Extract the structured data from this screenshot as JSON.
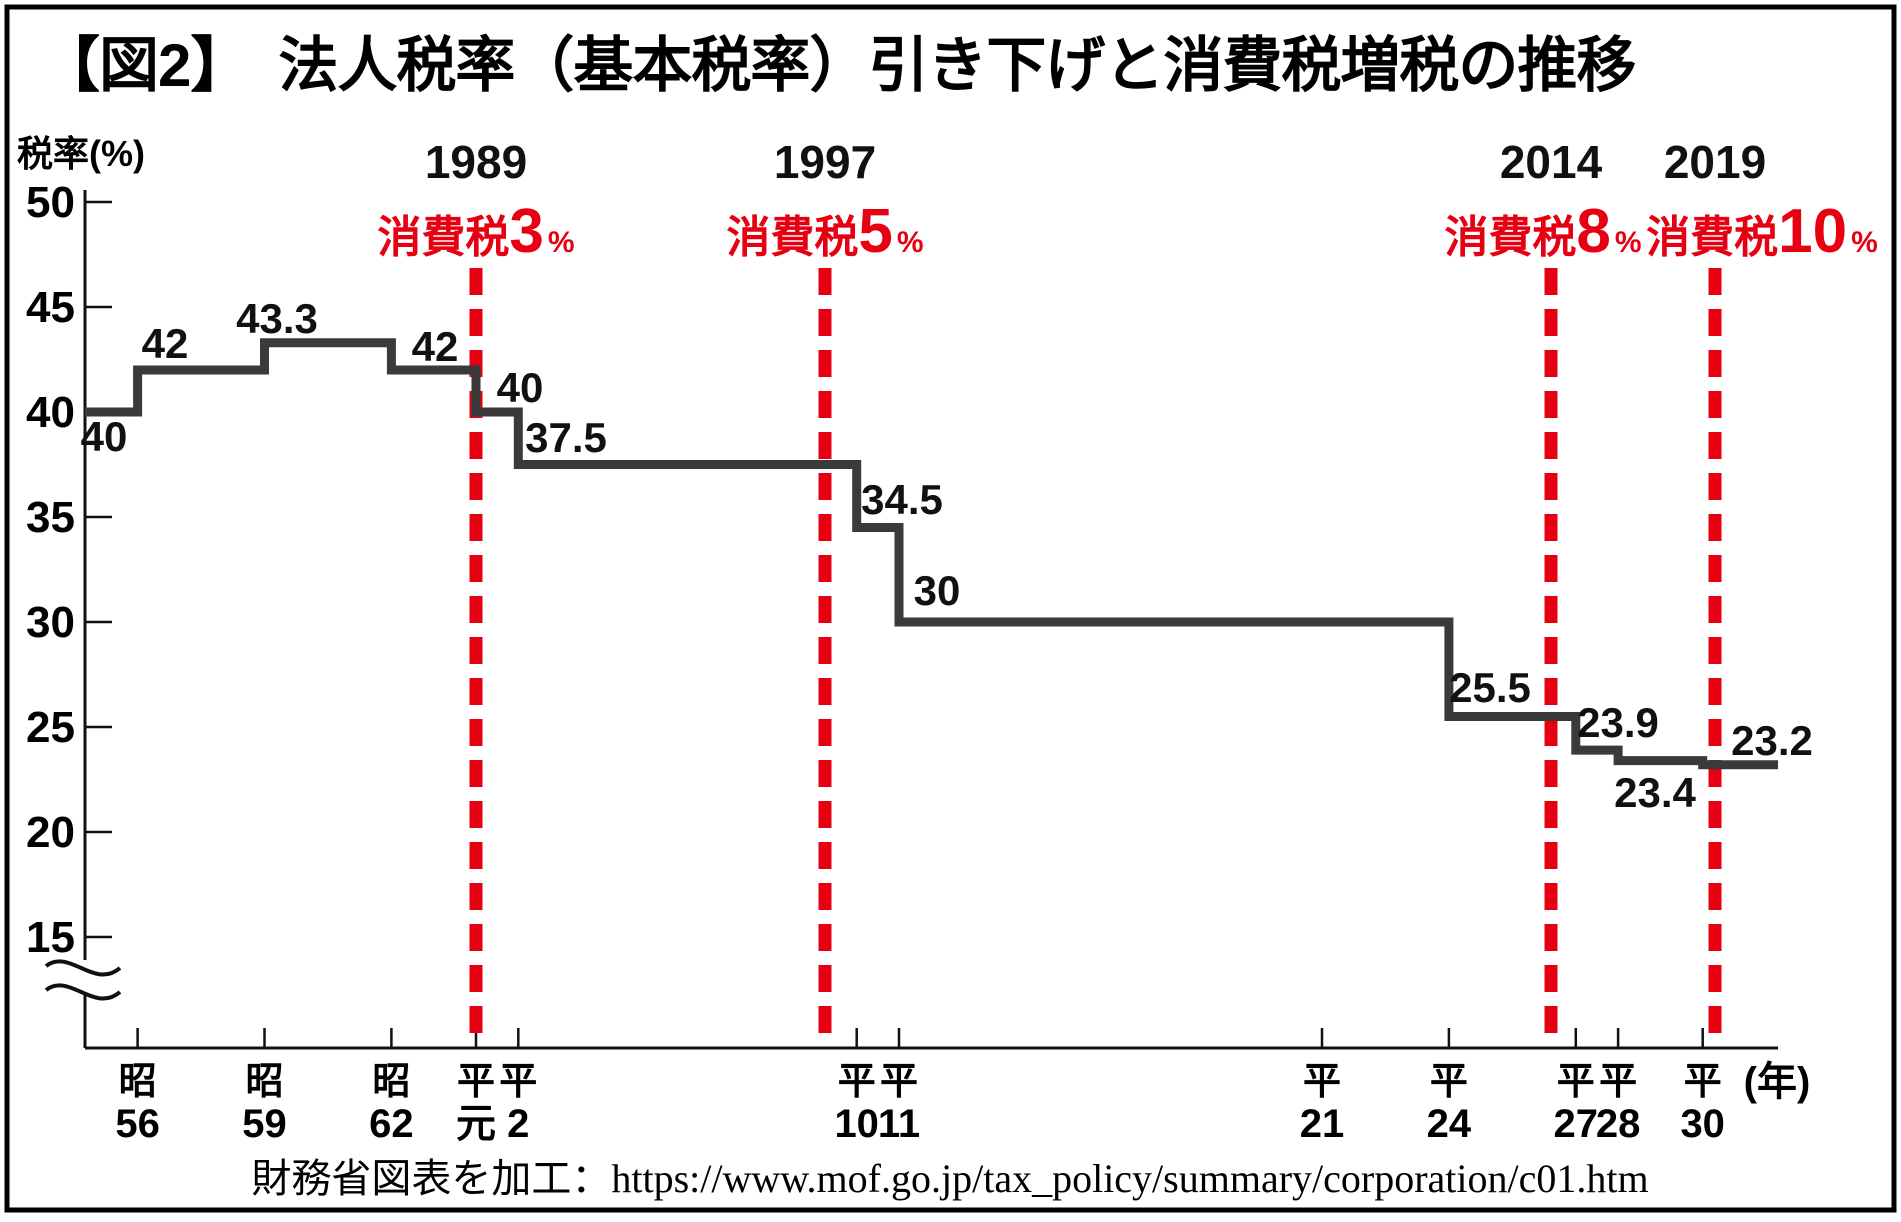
{
  "title": "【図2】　法人税率（基本税率）引き下げと消費税増税の推移",
  "y_axis": {
    "label": "税率(%)",
    "ticks": [
      50,
      45,
      40,
      35,
      30,
      25,
      20,
      15
    ],
    "axis_break": true
  },
  "x_axis": {
    "unit_label": "(年)",
    "ticks": [
      {
        "era": "昭",
        "num": "56",
        "year": 1981
      },
      {
        "era": "昭",
        "num": "59",
        "year": 1984
      },
      {
        "era": "昭",
        "num": "62",
        "year": 1987
      },
      {
        "era": "平",
        "num": "元",
        "year": 1989
      },
      {
        "era": "平",
        "num": "2",
        "year": 1990
      },
      {
        "era": "平",
        "num": "10",
        "year": 1998
      },
      {
        "era": "平",
        "num": "11",
        "year": 1999
      },
      {
        "era": "平",
        "num": "21",
        "year": 2009
      },
      {
        "era": "平",
        "num": "24",
        "year": 2012
      },
      {
        "era": "平",
        "num": "27",
        "year": 2015
      },
      {
        "era": "平",
        "num": "28",
        "year": 2016
      },
      {
        "era": "平",
        "num": "30",
        "year": 2018
      }
    ]
  },
  "source": "財務省図表を加工：https://www.mof.go.jp/tax_policy/summary/corporation/c01.htm",
  "chart_data": {
    "type": "line",
    "step": true,
    "title": "法人税率（基本税率）引き下げと消費税増税の推移",
    "ylabel": "税率(%)",
    "xlabel": "(年)",
    "ylim": [
      15,
      50
    ],
    "x_range_years": [
      1979.8,
      2019.8
    ],
    "grid": false,
    "axis_break_below": 15,
    "colors": {
      "line": "#3a3a3a",
      "event": "#e60012",
      "text": "#000000"
    },
    "series": [
      {
        "name": "法人税率（基本税率）",
        "points": [
          {
            "year": 1979.8,
            "value": 40,
            "label": "40"
          },
          {
            "year": 1981,
            "value": 42,
            "label": "42"
          },
          {
            "year": 1984,
            "value": 43.3,
            "label": "43.3"
          },
          {
            "year": 1987,
            "value": 42,
            "label": "42"
          },
          {
            "year": 1989,
            "value": 40,
            "label": "40"
          },
          {
            "year": 1990,
            "value": 37.5,
            "label": "37.5"
          },
          {
            "year": 1998,
            "value": 34.5,
            "label": "34.5"
          },
          {
            "year": 1999,
            "value": 30,
            "label": "30"
          },
          {
            "year": 2012,
            "value": 25.5,
            "label": "25.5"
          },
          {
            "year": 2015,
            "value": 23.9,
            "label": "23.9"
          },
          {
            "year": 2016,
            "value": 23.4,
            "label": "23.4"
          },
          {
            "year": 2018,
            "value": 23.2,
            "label": "23.2"
          }
        ]
      }
    ],
    "events": [
      {
        "year": 1989,
        "year_label": "1989",
        "label": "消費税",
        "rate": "3",
        "unit": "%"
      },
      {
        "year": 1997,
        "year_label": "1997",
        "label": "消費税",
        "rate": "5",
        "unit": "%"
      },
      {
        "year": 2014,
        "year_label": "2014",
        "label": "消費税",
        "rate": "8",
        "unit": "%"
      },
      {
        "year": 2019,
        "year_label": "2019",
        "label": "消費税",
        "rate": "10",
        "unit": "%"
      }
    ]
  }
}
